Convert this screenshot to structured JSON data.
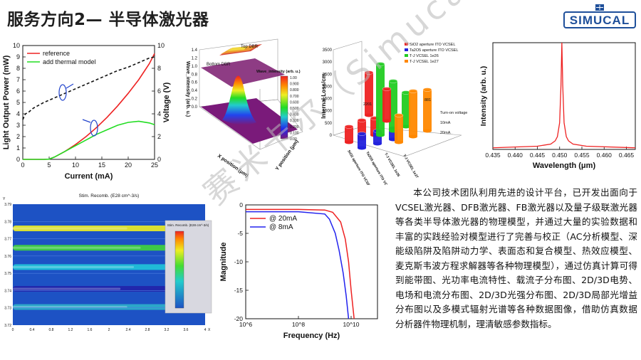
{
  "slide": {
    "title": "服务方向2— 半导体激光器",
    "logo_text": "SIMUCAL",
    "watermark": "赛米卡尔（Simucal）",
    "paragraph": "本公司技术团队利用先进的设计平台，已开发出面向于VCSEL激光器、DFB激光器、FB激光器以及量子级联激光器等各类半导体激光器的物理模型，并通过大量的实验数据和丰富的实践经验对模型进行了完善与校正（AC分析模型、深能级陷阱及陷阱动力学、表面态和复合模型、热效应模型、麦克斯韦波方程求解器等各种物理模型），通过仿真计算可得到能带图、光功率电流特性、载流子分布图、2D/3D电势、电场和电流分布图、2D/3D光强分布图、2D/3D局部光增益分布图以及多模式辐射光谱等各种数据图像，借助仿真数据分析器件物理机制，理清敏感参数指标。"
  },
  "chart_data": [
    {
      "type": "line",
      "xlabel": "Current (mA)",
      "ylabel": "Light Output Power (mW)",
      "y2label": "Voltage (V)",
      "xlim": [
        0,
        25
      ],
      "ylim": [
        0,
        10
      ],
      "y2lim": [
        0,
        10
      ],
      "xticks": [
        "0",
        "5",
        "10",
        "15",
        "20",
        "25"
      ],
      "yticks": [
        "0",
        "1",
        "2",
        "3",
        "4",
        "5",
        "6",
        "7",
        "8",
        "9",
        "10"
      ],
      "y2ticks": [
        "0",
        "2",
        "4",
        "6",
        "8",
        "10"
      ],
      "series": [
        {
          "name": "reference",
          "color": "#ee2222",
          "x": [
            0,
            4,
            5,
            6,
            8,
            10,
            12,
            14,
            16,
            18,
            20,
            22,
            24,
            25
          ],
          "y": [
            0,
            0,
            0.02,
            0.2,
            0.7,
            1.3,
            2.0,
            2.8,
            3.7,
            4.7,
            5.8,
            7.0,
            8.4,
            9.3
          ]
        },
        {
          "name": "add thermal model",
          "color": "#22dd22",
          "x": [
            0,
            4,
            5,
            6,
            8,
            10,
            12,
            14,
            16,
            18,
            20,
            22,
            24,
            25
          ],
          "y": [
            0,
            0,
            0.02,
            0.2,
            0.7,
            1.2,
            1.7,
            2.2,
            2.6,
            3.0,
            3.25,
            3.35,
            3.2,
            3.05
          ]
        },
        {
          "name": "",
          "color": "#111111",
          "dashed": true,
          "axis": "right",
          "x": [
            0,
            0.5,
            1,
            2,
            4,
            6,
            8,
            10,
            12,
            14,
            16,
            18,
            20,
            22,
            24,
            25
          ],
          "y": [
            3.5,
            4.0,
            4.1,
            4.5,
            5.0,
            5.4,
            5.8,
            6.2,
            6.6,
            7.0,
            7.4,
            7.8,
            8.1,
            8.5,
            8.9,
            9.0
          ]
        }
      ]
    },
    {
      "type": "surface3d",
      "zlabel": "Wave_intensity (arb. u.)",
      "xlabel": "X position (μm)",
      "ylabel": "Y position (μm)",
      "labels": [
        "Top DBR",
        "Bottom DBR"
      ],
      "zticks": [
        "0.0",
        "0.2",
        "0.4",
        "0.6",
        "0.8",
        "1.0",
        "1.2",
        "1.4"
      ],
      "colorbar_title": "Wave_intensity (arb. u.)",
      "colorbar_ticks": [
        "1.00",
        "0.900",
        "0.800",
        "0.700",
        "0.600",
        "0.500",
        "0.400",
        "0.300",
        "0.200",
        "0.100",
        "0.00"
      ]
    },
    {
      "type": "bar3d",
      "zlabel": "Internal Loss/cm",
      "legend": [
        "SiO2 aperture ITO VCSEL",
        "Ta2O5 aperture ITO VCSEL",
        "T-J VCSEL 1e26",
        "T-J VCSEL 1e27"
      ],
      "colors": [
        "#ee2222",
        "#2222dd",
        "#22cc22",
        "#ff8800"
      ],
      "categories": [
        "SiO2 aperture ITO VCSEL",
        "Ta2O5 aperture ITO VCSEL",
        "T-J VCSEL 1e26",
        "T-J VCSEL 1e27"
      ],
      "rows": [
        "Turn-on voltage",
        "10mA",
        "20mA"
      ],
      "zticks": [
        "0",
        "500",
        "1000",
        "1500",
        "2000",
        "2500",
        "3000",
        "3500"
      ],
      "value_labels": [
        "2201",
        "881"
      ]
    },
    {
      "type": "line",
      "xlabel": "Wavelength (μm)",
      "ylabel": "Intensity (arb. u.)",
      "xlim": [
        0.435,
        0.467
      ],
      "ylim": [
        0,
        1
      ],
      "xticks": [
        "0.435",
        "0.440",
        "0.445",
        "0.450",
        "0.455",
        "0.460",
        "0.465"
      ],
      "series": [
        {
          "name": "",
          "color": "#ee2222",
          "x": [
            0.435,
            0.445,
            0.448,
            0.449,
            0.4495,
            0.45,
            0.4503,
            0.4505,
            0.4507,
            0.451,
            0.4515,
            0.452,
            0.453,
            0.456,
            0.467
          ],
          "y": [
            0.015,
            0.03,
            0.05,
            0.08,
            0.12,
            0.25,
            0.6,
            1.0,
            0.6,
            0.25,
            0.12,
            0.08,
            0.05,
            0.03,
            0.015
          ]
        }
      ]
    },
    {
      "type": "heatmap",
      "title": "Stim. Recomb. (E28 cm^-3/s)",
      "xlabel": "X",
      "ylabel": "Y",
      "xticks": [
        "0",
        "0.4",
        "0.8",
        "1.2",
        "1.6",
        "2",
        "2.4",
        "2.8",
        "3.2",
        "3.6",
        "4"
      ],
      "yticks": [
        "3.79",
        "3.78",
        "3.77",
        "3.76",
        "3.75",
        "3.74",
        "3.73",
        "3.72"
      ],
      "colorbar_title": "Stim. Recomb. (E28 cm^-3/s)"
    },
    {
      "type": "line",
      "xlabel": "Frequency (Hz)",
      "ylabel": "Magnitude",
      "xscale": "log",
      "xlim": [
        1000000.0,
        100000000000.0
      ],
      "ylim": [
        -20,
        0
      ],
      "xticks": [
        "10^6",
        "10^8",
        "10^10"
      ],
      "yticks": [
        "0",
        "-5",
        "-10",
        "-15",
        "-20"
      ],
      "series": [
        {
          "name": "@ 20mA",
          "color": "#ee2222",
          "x": [
            1000000.0,
            10000000.0,
            100000000.0,
            1000000000.0,
            2000000000.0,
            4000000000.0,
            6000000000.0,
            8000000000.0,
            10000000000.0,
            13000000000.0
          ],
          "y": [
            -0.8,
            -0.8,
            -0.8,
            -0.9,
            -1.3,
            -3,
            -6,
            -10,
            -15,
            -20
          ]
        },
        {
          "name": "@ 8mA",
          "color": "#2222ee",
          "x": [
            1000000.0,
            10000000.0,
            100000000.0,
            1000000000.0,
            1500000000.0,
            2500000000.0,
            3500000000.0,
            5000000000.0,
            6500000000.0,
            8000000000.0
          ],
          "y": [
            -1.2,
            -1.2,
            -1.2,
            -1.6,
            -2.5,
            -5,
            -8,
            -12,
            -16,
            -20
          ]
        }
      ]
    }
  ]
}
